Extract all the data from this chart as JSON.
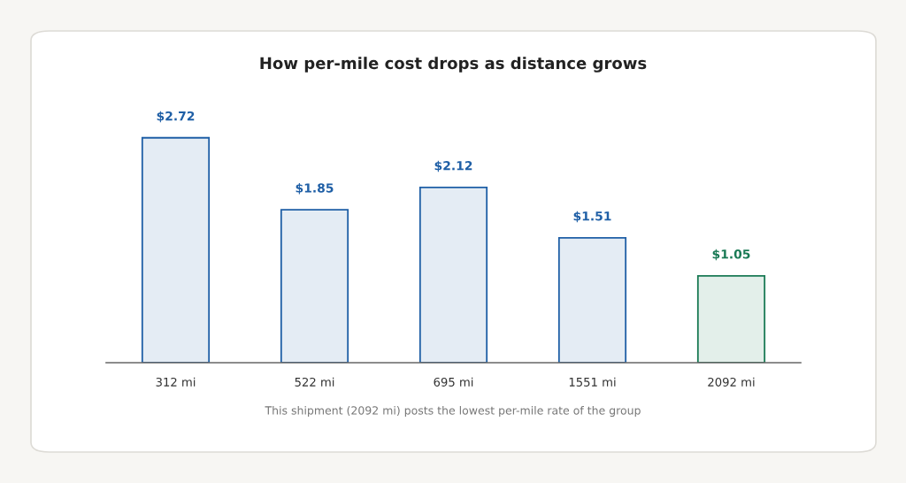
{
  "chart_data": {
    "type": "bar",
    "title": "How per-mile cost drops as distance grows",
    "categories": [
      "312 mi",
      "522 mi",
      "695 mi",
      "1551 mi",
      "2092 mi"
    ],
    "values": [
      2.72,
      1.85,
      2.12,
      1.51,
      1.05
    ],
    "colors": [
      "#1f5fa6",
      "#1f5fa6",
      "#1f5fa6",
      "#1f5fa6",
      "#1a7a55"
    ],
    "value_labels": [
      "$2.72",
      "$1.85",
      "$2.12",
      "$1.51",
      "$1.05"
    ],
    "annotations": [
      "This shipment (2092 mi) posts the lowest per-mile rate of the group"
    ]
  }
}
